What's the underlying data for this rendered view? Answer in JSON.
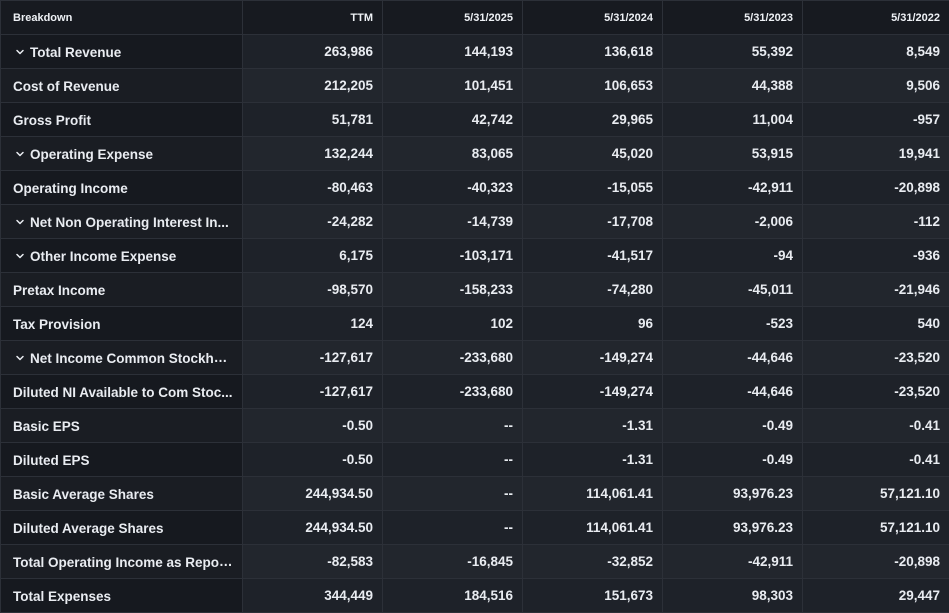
{
  "table": {
    "headers": [
      "Breakdown",
      "TTM",
      "5/31/2025",
      "5/31/2024",
      "5/31/2023",
      "5/31/2022"
    ],
    "rows": [
      {
        "label": "Total Revenue",
        "expandable": true,
        "values": [
          "263,986",
          "144,193",
          "136,618",
          "55,392",
          "8,549"
        ]
      },
      {
        "label": "Cost of Revenue",
        "expandable": false,
        "values": [
          "212,205",
          "101,451",
          "106,653",
          "44,388",
          "9,506"
        ]
      },
      {
        "label": "Gross Profit",
        "expandable": false,
        "values": [
          "51,781",
          "42,742",
          "29,965",
          "11,004",
          "-957"
        ]
      },
      {
        "label": "Operating Expense",
        "expandable": true,
        "values": [
          "132,244",
          "83,065",
          "45,020",
          "53,915",
          "19,941"
        ]
      },
      {
        "label": "Operating Income",
        "expandable": false,
        "values": [
          "-80,463",
          "-40,323",
          "-15,055",
          "-42,911",
          "-20,898"
        ]
      },
      {
        "label": "Net Non Operating Interest In...",
        "expandable": true,
        "values": [
          "-24,282",
          "-14,739",
          "-17,708",
          "-2,006",
          "-112"
        ]
      },
      {
        "label": "Other Income Expense",
        "expandable": true,
        "values": [
          "6,175",
          "-103,171",
          "-41,517",
          "-94",
          "-936"
        ]
      },
      {
        "label": "Pretax Income",
        "expandable": false,
        "values": [
          "-98,570",
          "-158,233",
          "-74,280",
          "-45,011",
          "-21,946"
        ]
      },
      {
        "label": "Tax Provision",
        "expandable": false,
        "values": [
          "124",
          "102",
          "96",
          "-523",
          "540"
        ]
      },
      {
        "label": "Net Income Common Stockho...",
        "expandable": true,
        "values": [
          "-127,617",
          "-233,680",
          "-149,274",
          "-44,646",
          "-23,520"
        ]
      },
      {
        "label": "Diluted NI Available to Com Stoc...",
        "expandable": false,
        "values": [
          "-127,617",
          "-233,680",
          "-149,274",
          "-44,646",
          "-23,520"
        ]
      },
      {
        "label": "Basic EPS",
        "expandable": false,
        "values": [
          "-0.50",
          "--",
          "-1.31",
          "-0.49",
          "-0.41"
        ]
      },
      {
        "label": "Diluted EPS",
        "expandable": false,
        "values": [
          "-0.50",
          "--",
          "-1.31",
          "-0.49",
          "-0.41"
        ]
      },
      {
        "label": "Basic Average Shares",
        "expandable": false,
        "values": [
          "244,934.50",
          "--",
          "114,061.41",
          "93,976.23",
          "57,121.10"
        ]
      },
      {
        "label": "Diluted Average Shares",
        "expandable": false,
        "values": [
          "244,934.50",
          "--",
          "114,061.41",
          "93,976.23",
          "57,121.10"
        ]
      },
      {
        "label": "Total Operating Income as Repor...",
        "expandable": false,
        "values": [
          "-82,583",
          "-16,845",
          "-32,852",
          "-42,911",
          "-20,898"
        ]
      },
      {
        "label": "Total Expenses",
        "expandable": false,
        "values": [
          "344,449",
          "184,516",
          "151,673",
          "98,303",
          "29,447"
        ]
      }
    ]
  }
}
